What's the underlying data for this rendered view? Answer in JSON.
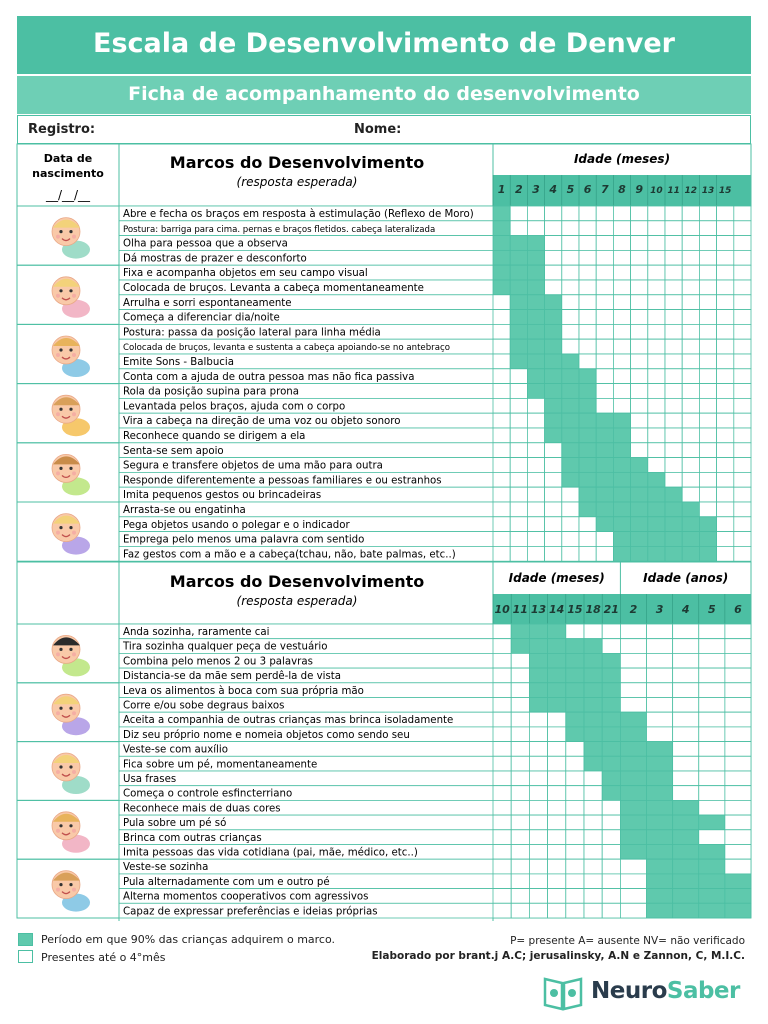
{
  "title": "Escala de Desenvolvimento de Denver",
  "subtitle": "Ficha de acompanhamento do desenvolvimento",
  "form": {
    "registro": "Registro:",
    "nome": "Nome:"
  },
  "birth": {
    "label1": "Data de",
    "label2": "nascimento",
    "blank": "__/__/__"
  },
  "section1": {
    "heading": "Marcos do Desenvolvimento",
    "sub": "(resposta esperada)",
    "age_label": "Idade (meses)",
    "months": [
      "1",
      "2",
      "3",
      "4",
      "5",
      "6",
      "7",
      "8",
      "9",
      "10",
      "11",
      "12",
      "13",
      "15"
    ],
    "groups": [
      {
        "icon": "baby-lying-icon",
        "items": [
          {
            "label": "Abre e fecha os braços em resposta à estimulação (Reflexo de Moro)",
            "range": [
              0,
              1
            ],
            "small": false
          },
          {
            "label": "Postura: barriga para cima. pernas e braços fletidos. cabeça lateralizada",
            "range": [
              0,
              1
            ],
            "small": true
          },
          {
            "label": "Olha para pessoa que a observa",
            "range": [
              0,
              3
            ],
            "small": false
          },
          {
            "label": "Dá mostras de prazer e desconforto",
            "range": [
              0,
              3
            ],
            "small": false
          }
        ]
      },
      {
        "icon": "baby-face-icon",
        "items": [
          {
            "label": "Fixa e acompanha objetos em seu campo visual",
            "range": [
              0,
              3
            ],
            "small": false
          },
          {
            "label": "Colocada de bruços. Levanta a cabeça momentaneamente",
            "range": [
              0,
              3
            ],
            "small": false
          },
          {
            "label": "Arrulha e sorri espontaneamente",
            "range": [
              1,
              4
            ],
            "small": false
          },
          {
            "label": "Começa a diferenciar dia/noite",
            "range": [
              1,
              4
            ],
            "small": false
          }
        ]
      },
      {
        "icon": "baby-sitting-icon",
        "items": [
          {
            "label": "Postura: passa da posição lateral para linha média",
            "range": [
              1,
              4
            ],
            "small": false
          },
          {
            "label": "Colocada de bruços, levanta e sustenta a cabeça apoiando-se no antebraço",
            "range": [
              1,
              4
            ],
            "small": true
          },
          {
            "label": "Emite Sons - Balbucia",
            "range": [
              1,
              5
            ],
            "small": false
          },
          {
            "label": "Conta com a ajuda de outra pessoa mas não fica passiva",
            "range": [
              2,
              6
            ],
            "small": false
          }
        ]
      },
      {
        "icon": "baby-crawling-icon",
        "items": [
          {
            "label": "Rola da posição supina para prona",
            "range": [
              2,
              6
            ],
            "small": false
          },
          {
            "label": "Levantada pelos braços, ajuda com o corpo",
            "range": [
              3,
              6
            ],
            "small": false
          },
          {
            "label": "Vira a cabeça na direção de uma voz ou objeto sonoro",
            "range": [
              3,
              8
            ],
            "small": false
          },
          {
            "label": "Reconhece quando se dirigem a ela",
            "range": [
              3,
              8
            ],
            "small": false
          }
        ]
      },
      {
        "icon": "baby-seated-icon",
        "items": [
          {
            "label": "Senta-se sem apoio",
            "range": [
              4,
              8
            ],
            "small": false
          },
          {
            "label": "Segura e transfere objetos de uma mão para outra",
            "range": [
              4,
              9
            ],
            "small": false
          },
          {
            "label": "Responde diferentemente a pessoas familiares e ou estranhos",
            "range": [
              4,
              10
            ],
            "small": false
          },
          {
            "label": "Imita pequenos gestos ou brincadeiras",
            "range": [
              5,
              11
            ],
            "small": false
          }
        ]
      },
      {
        "icon": "baby-crawl-floor-icon",
        "items": [
          {
            "label": "Arrasta-se ou engatinha",
            "range": [
              5,
              12
            ],
            "small": false
          },
          {
            "label": "Pega objetos usando o polegar e o indicador",
            "range": [
              6,
              13
            ],
            "small": false
          },
          {
            "label": "Emprega pelo menos uma palavra com sentido",
            "range": [
              7,
              13
            ],
            "small": false
          },
          {
            "label": "Faz gestos com a mão e a cabeça(tchau, não, bate palmas, etc..)",
            "range": [
              7,
              13
            ],
            "small": false
          }
        ]
      }
    ]
  },
  "section2": {
    "heading": "Marcos do Desenvolvimento",
    "sub": "(resposta esperada)",
    "age_months_label": "Idade (meses)",
    "age_years_label": "Idade (anos)",
    "months": [
      "10",
      "11",
      "13",
      "14",
      "15",
      "18",
      "21"
    ],
    "years": [
      "2",
      "3",
      "4",
      "5",
      "6"
    ],
    "groups": [
      {
        "icon": "toddler-standing-icon",
        "items": [
          {
            "label": "Anda sozinha, raramente cai",
            "range": [
              1,
              4
            ]
          },
          {
            "label": "Tira sozinha qualquer peça de vestuário",
            "range": [
              1,
              6
            ]
          },
          {
            "label": "Combina pelo menos 2 ou 3 palavras",
            "range": [
              2,
              7
            ]
          },
          {
            "label": "Distancia-se da mãe sem perdê-la de vista",
            "range": [
              2,
              7
            ]
          }
        ]
      },
      {
        "icon": "girl-eating-icon",
        "items": [
          {
            "label": "Leva os alimentos à boca com sua própria mão",
            "range": [
              2,
              7
            ]
          },
          {
            "label": "Corre e/ou sobe degraus baixos",
            "range": [
              2,
              7
            ]
          },
          {
            "label": "Aceita a companhia de outras crianças mas brinca isoladamente",
            "range": [
              4,
              8
            ]
          },
          {
            "label": "Diz seu próprio nome e nomeia objetos como sendo seu",
            "range": [
              4,
              8
            ]
          }
        ]
      },
      {
        "icon": "boy-running-icon",
        "items": [
          {
            "label": "Veste-se com auxílio",
            "range": [
              5,
              9
            ]
          },
          {
            "label": "Fica sobre um pé, momentaneamente",
            "range": [
              5,
              9
            ]
          },
          {
            "label": "Usa frases",
            "range": [
              6,
              9
            ]
          },
          {
            "label": "Começa o controle esfincterriano",
            "range": [
              6,
              9
            ]
          }
        ]
      },
      {
        "icon": "two-kids-icon",
        "items": [
          {
            "label": "Reconhece mais de duas cores",
            "range": [
              7,
              10
            ]
          },
          {
            "label": "Pula sobre um pé só",
            "range": [
              7,
              11
            ]
          },
          {
            "label": "Brinca com outras crianças",
            "range": [
              7,
              10
            ]
          },
          {
            "label": "Imita pessoas das vida cotidiana (pai, mãe, médico, etc..)",
            "range": [
              7,
              11
            ]
          }
        ]
      },
      {
        "icon": "girl-jumping-rope-icon",
        "items": [
          {
            "label": "Veste-se sozinha",
            "range": [
              8,
              11
            ]
          },
          {
            "label": "Pula alternadamente com um e outro pé",
            "range": [
              8,
              12
            ]
          },
          {
            "label": "Alterna momentos cooperativos com agressivos",
            "range": [
              8,
              12
            ]
          },
          {
            "label": "Capaz de expressar preferências e ideias próprias",
            "range": [
              8,
              12
            ]
          }
        ]
      }
    ]
  },
  "legend": {
    "filled": "Período em que 90% das crianças adquirem o marco.",
    "empty": "Presentes até o 4°mês"
  },
  "notes": {
    "codes": "P= presente   A= ausente  NV= não verificado",
    "credits": "Elaborado por brant.j A.C; jerusalinsky, A.N e Zannon, C, M.I.C."
  },
  "colors": {
    "accent": "#4cbfa3",
    "accent_light": "#6ecfb5",
    "fill": "#5fc9ad",
    "header_cell": "#4cbfa3"
  },
  "brand": {
    "part1": "Neuro",
    "part2": "Saber",
    "icon": "brain-book-icon"
  }
}
